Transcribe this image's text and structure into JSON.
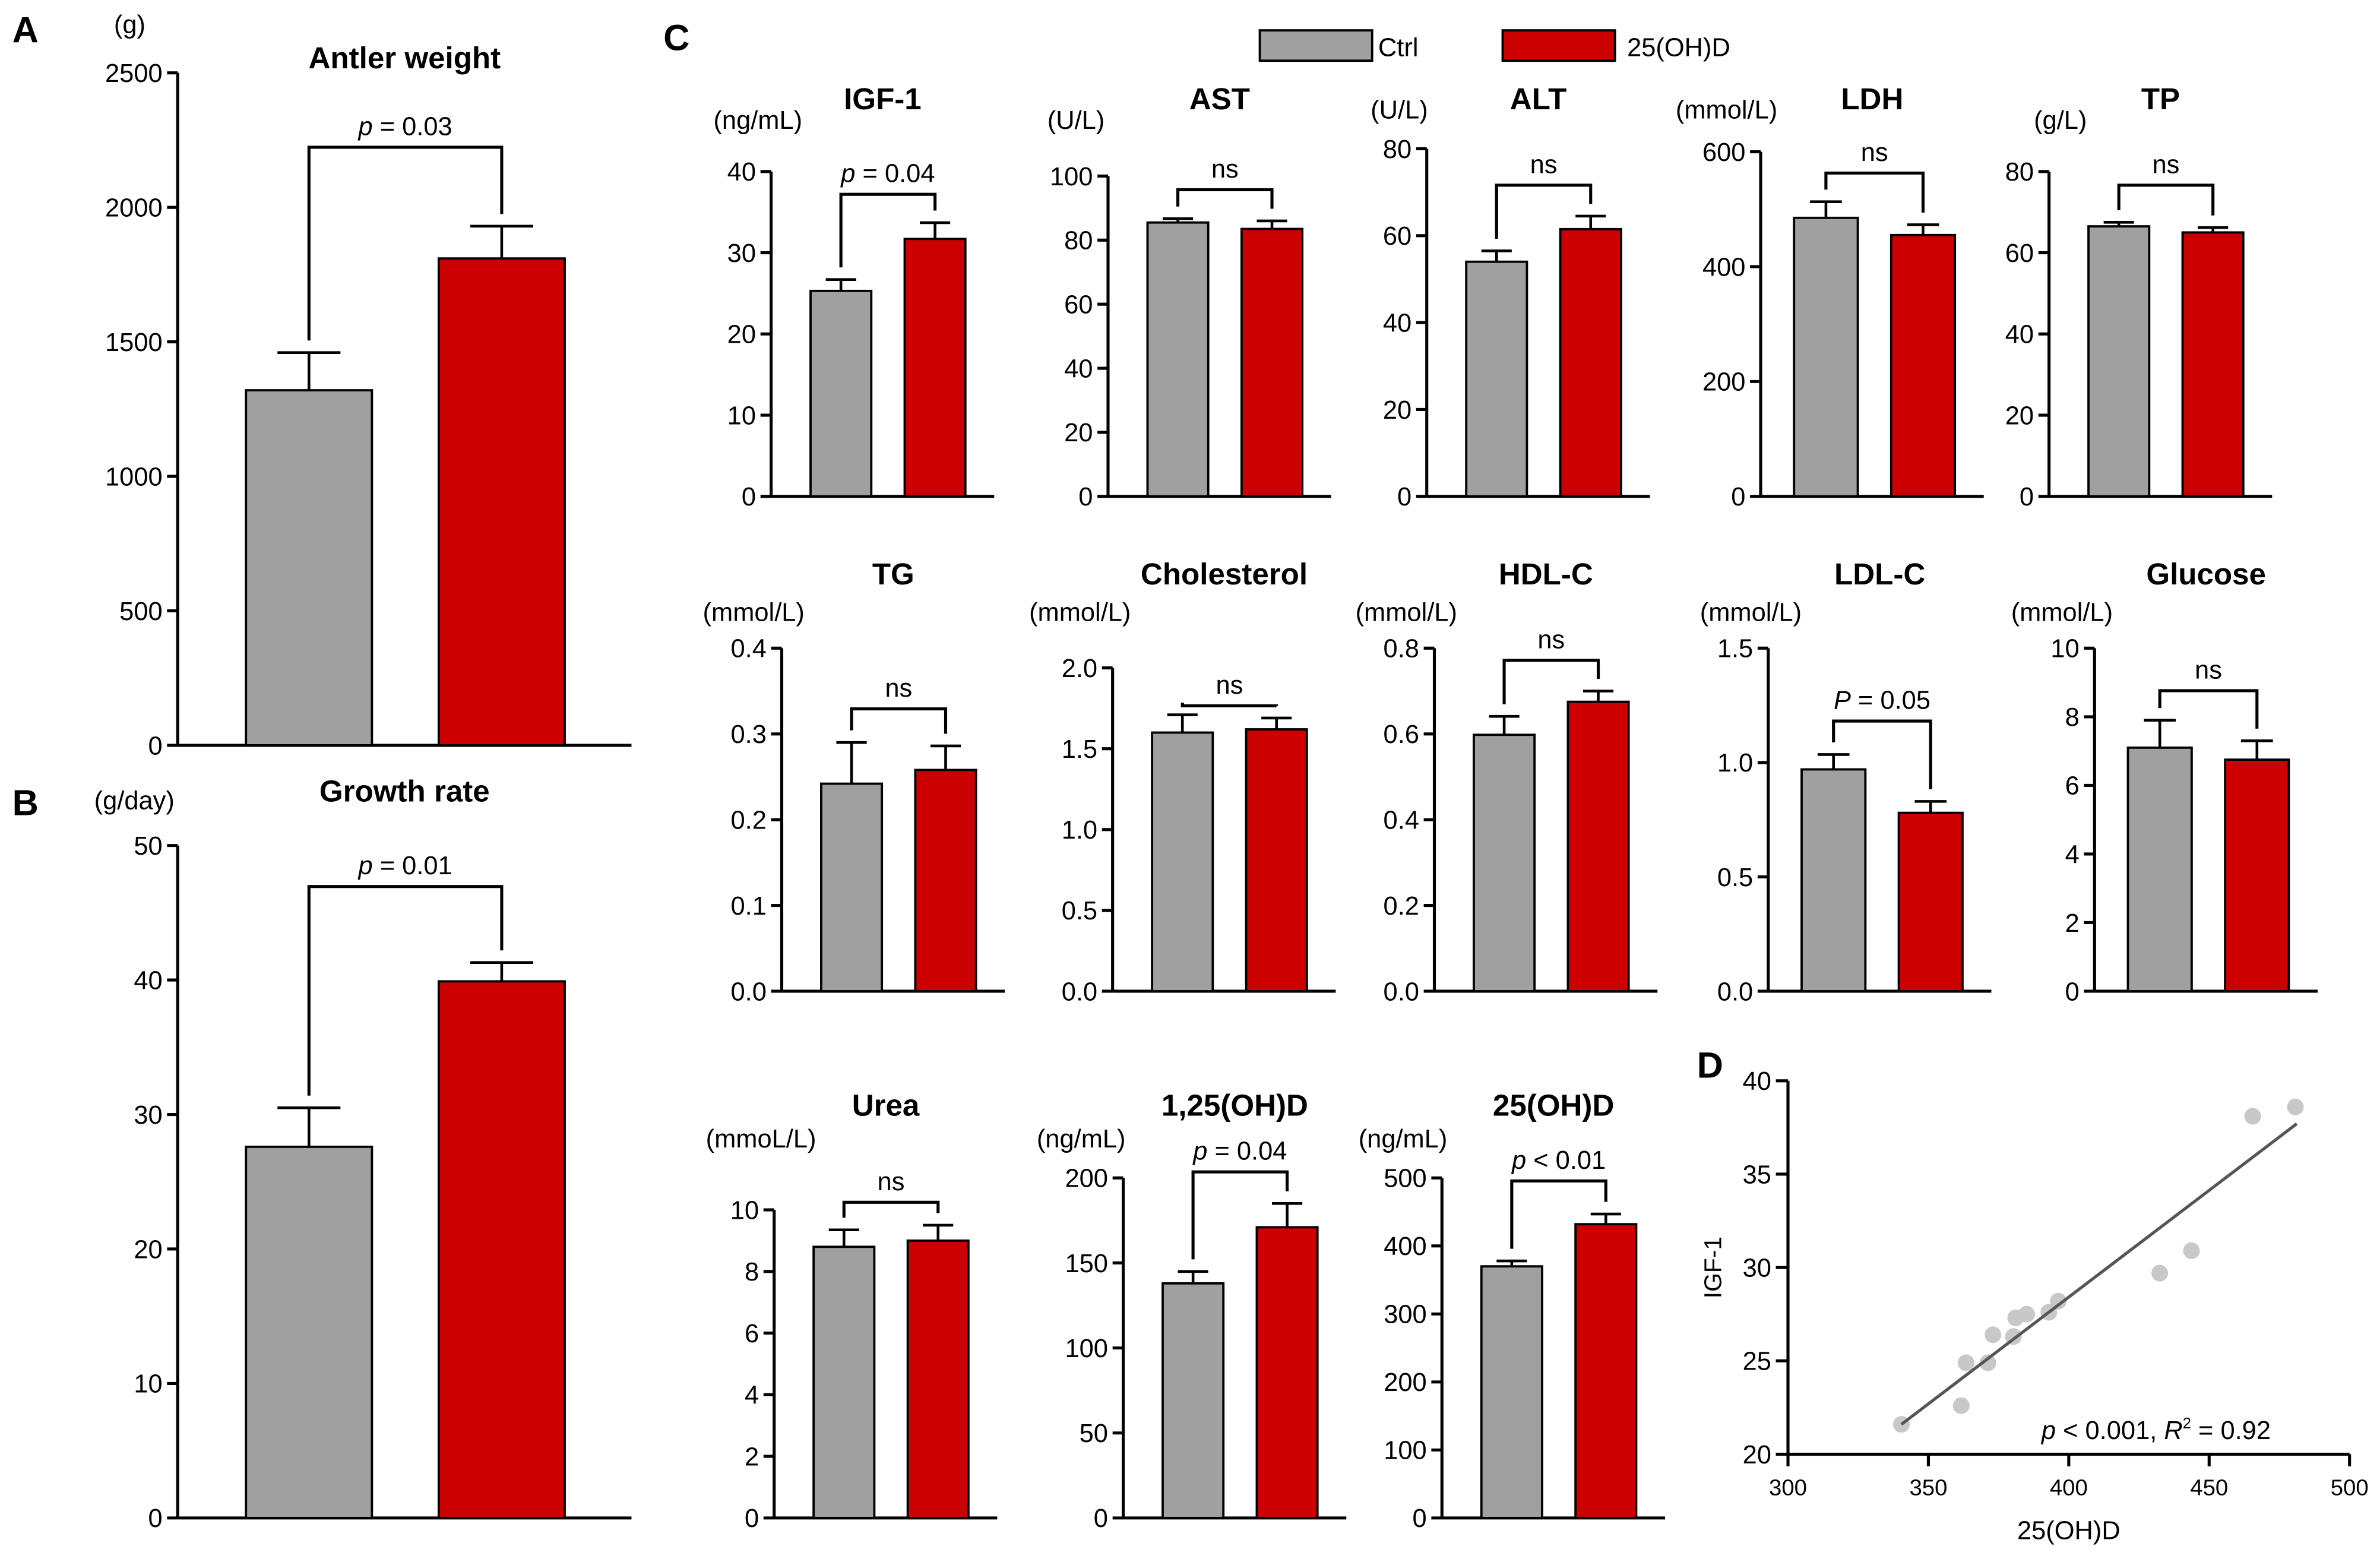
{
  "colors": {
    "ctrl": "#a0a0a0",
    "treat": "#cc0000",
    "point": "#c8c8c8",
    "line": "#555555"
  },
  "legend": [
    {
      "label": "Ctrl"
    },
    {
      "label": "25(OH)D"
    }
  ],
  "panel_letters": [
    "A",
    "B",
    "C",
    "D"
  ],
  "chart_data": [
    {
      "id": "antler",
      "type": "bar",
      "title": "Antler weight",
      "ylabel": "(g)",
      "ylim": [
        0,
        2500
      ],
      "ticks": [
        "0",
        "500",
        "1000",
        "1500",
        "2000",
        "2500"
      ],
      "categories": [
        "Ctrl",
        "25(OH)D"
      ],
      "values": [
        1320,
        1810
      ],
      "errors": [
        140,
        120
      ],
      "sig_italic": "p",
      "sig_text": " = 0.03"
    },
    {
      "id": "growth",
      "type": "bar",
      "title": "Growth rate",
      "ylabel": "(g/day)",
      "ylim": [
        0,
        50
      ],
      "ticks": [
        "0",
        "10",
        "20",
        "30",
        "40",
        "50"
      ],
      "categories": [
        "Ctrl",
        "25(OH)D"
      ],
      "values": [
        27.6,
        39.9
      ],
      "errors": [
        2.9,
        1.4
      ],
      "sig_italic": "p",
      "sig_text": " = 0.01"
    },
    {
      "id": "igf1",
      "type": "bar",
      "title": "IGF-1",
      "ylabel": "(ng/mL)",
      "ylim": [
        0,
        40
      ],
      "ticks": [
        "0",
        "10",
        "20",
        "30",
        "40"
      ],
      "categories": [
        "Ctrl",
        "25(OH)D"
      ],
      "values": [
        25.3,
        31.7
      ],
      "errors": [
        1.4,
        2.0
      ],
      "sig_italic": "p",
      "sig_text": " = 0.04"
    },
    {
      "id": "ast",
      "type": "bar",
      "title": "AST",
      "ylabel": "(U/L)",
      "ylim": [
        0,
        100
      ],
      "ticks": [
        "0",
        "20",
        "40",
        "60",
        "80",
        "100"
      ],
      "categories": [
        "Ctrl",
        "25(OH)D"
      ],
      "values": [
        85.5,
        83.5
      ],
      "errors": [
        1.2,
        2.5
      ],
      "sig_italic": "",
      "sig_text": "ns"
    },
    {
      "id": "alt",
      "type": "bar",
      "title": "ALT",
      "ylabel": "(U/L)",
      "ylim": [
        0,
        80
      ],
      "ticks": [
        "0",
        "20",
        "40",
        "60",
        "80"
      ],
      "categories": [
        "Ctrl",
        "25(OH)D"
      ],
      "values": [
        54,
        61.5
      ],
      "errors": [
        2.5,
        3
      ],
      "sig_italic": "",
      "sig_text": "ns"
    },
    {
      "id": "ldh",
      "type": "bar",
      "title": "LDH",
      "ylabel": "(mmol/L)",
      "ylim": [
        0,
        600
      ],
      "ticks": [
        "0",
        "200",
        "400",
        "600"
      ],
      "categories": [
        "Ctrl",
        "25(OH)D"
      ],
      "values": [
        485,
        455
      ],
      "errors": [
        28,
        18
      ],
      "sig_italic": "",
      "sig_text": "ns"
    },
    {
      "id": "tp",
      "type": "bar",
      "title": "TP",
      "ylabel": "(g/L)",
      "ylim": [
        0,
        80
      ],
      "ticks": [
        "0",
        "20",
        "40",
        "60",
        "80"
      ],
      "categories": [
        "Ctrl",
        "25(OH)D"
      ],
      "values": [
        66.5,
        65
      ],
      "errors": [
        1,
        1.2
      ],
      "sig_italic": "",
      "sig_text": "ns"
    },
    {
      "id": "tg",
      "type": "bar",
      "title": "TG",
      "ylabel": "(mmol/L)",
      "ylim": [
        0,
        0.4
      ],
      "ticks": [
        "0.0",
        "0.1",
        "0.2",
        "0.3",
        "0.4"
      ],
      "categories": [
        "Ctrl",
        "25(OH)D"
      ],
      "values": [
        0.242,
        0.258
      ],
      "errors": [
        0.048,
        0.028
      ],
      "sig_italic": "",
      "sig_text": "ns"
    },
    {
      "id": "chol",
      "type": "bar",
      "title": "Cholesterol",
      "ylabel": "(mmol/L)",
      "ylim": [
        0,
        2.0
      ],
      "ticks": [
        "0.0",
        "0.5",
        "1.0",
        "1.5",
        "2.0"
      ],
      "categories": [
        "Ctrl",
        "25(OH)D"
      ],
      "values": [
        1.6,
        1.62
      ],
      "errors": [
        0.11,
        0.07
      ],
      "sig_italic": "",
      "sig_text": "ns"
    },
    {
      "id": "hdl",
      "type": "bar",
      "title": "HDL-C",
      "ylabel": "(mmol/L)",
      "ylim": [
        0,
        0.8
      ],
      "ticks": [
        "0.0",
        "0.2",
        "0.4",
        "0.6",
        "0.8"
      ],
      "categories": [
        "Ctrl",
        "25(OH)D"
      ],
      "values": [
        0.598,
        0.675
      ],
      "errors": [
        0.043,
        0.025
      ],
      "sig_italic": "",
      "sig_text": "ns"
    },
    {
      "id": "ldl",
      "type": "bar",
      "title": "LDL-C",
      "ylabel": "(mmol/L)",
      "ylim": [
        0,
        1.5
      ],
      "ticks": [
        "0.0",
        "0.5",
        "1.0",
        "1.5"
      ],
      "categories": [
        "Ctrl",
        "25(OH)D"
      ],
      "values": [
        0.97,
        0.78
      ],
      "errors": [
        0.065,
        0.05
      ],
      "sig_italic": "P",
      "sig_text": " = 0.05"
    },
    {
      "id": "glucose",
      "type": "bar",
      "title": "Glucose",
      "ylabel": "(mmol/L)",
      "ylim": [
        0,
        10
      ],
      "ticks": [
        "0",
        "2",
        "4",
        "6",
        "8",
        "10"
      ],
      "categories": [
        "Ctrl",
        "25(OH)D"
      ],
      "values": [
        7.1,
        6.75
      ],
      "errors": [
        0.8,
        0.55
      ],
      "sig_italic": "",
      "sig_text": "ns"
    },
    {
      "id": "urea",
      "type": "bar",
      "title": "Urea",
      "ylabel": "(mmoL/L)",
      "ylim": [
        0,
        10
      ],
      "ticks": [
        "0",
        "2",
        "4",
        "6",
        "8",
        "10"
      ],
      "categories": [
        "Ctrl",
        "25(OH)D"
      ],
      "values": [
        8.8,
        9.0
      ],
      "errors": [
        0.55,
        0.5
      ],
      "sig_italic": "",
      "sig_text": "ns"
    },
    {
      "id": "d125",
      "type": "bar",
      "title": "1,25(OH)D",
      "ylabel": "(ng/mL)",
      "ylim": [
        0,
        200
      ],
      "ticks": [
        "0",
        "50",
        "100",
        "150",
        "200"
      ],
      "categories": [
        "Ctrl",
        "25(OH)D"
      ],
      "values": [
        138,
        171
      ],
      "errors": [
        7,
        14
      ],
      "sig_italic": "p",
      "sig_text": " = 0.04"
    },
    {
      "id": "d25",
      "type": "bar",
      "title": "25(OH)D",
      "ylabel": "(ng/mL)",
      "ylim": [
        0,
        500
      ],
      "ticks": [
        "0",
        "100",
        "200",
        "300",
        "400",
        "500"
      ],
      "categories": [
        "Ctrl",
        "25(OH)D"
      ],
      "values": [
        370,
        432
      ],
      "errors": [
        8,
        15
      ],
      "sig_italic": "p",
      "sig_text": " < 0.01"
    },
    {
      "id": "scatter",
      "type": "scatter",
      "xlabel": "25(OH)D",
      "ylabel": "IGF-1",
      "xlim": [
        300,
        500
      ],
      "ylim": [
        20,
        40
      ],
      "xticks": [
        "300",
        "350",
        "400",
        "450",
        "500"
      ],
      "yticks": [
        "20",
        "25",
        "30",
        "35",
        "40"
      ],
      "points": [
        [
          340.4,
          21.6
        ],
        [
          361.7,
          22.6
        ],
        [
          363.4,
          24.9
        ],
        [
          371.2,
          24.9
        ],
        [
          373,
          26.4
        ],
        [
          380.3,
          26.3
        ],
        [
          381.1,
          27.3
        ],
        [
          385,
          27.5
        ],
        [
          392.9,
          27.6
        ],
        [
          396.3,
          28.2
        ],
        [
          432.4,
          29.7
        ],
        [
          443.7,
          30.9
        ],
        [
          465.5,
          38.1
        ],
        [
          480.7,
          38.6
        ]
      ],
      "fit": [
        [
          340.4,
          21.6
        ],
        [
          481.2,
          37.7
        ]
      ],
      "annotation_italic": "p",
      "annotation_text": " < 0.001, ",
      "annotation_r": "R",
      "annotation_sup": "2",
      "annotation_value": " =  0.92"
    }
  ]
}
